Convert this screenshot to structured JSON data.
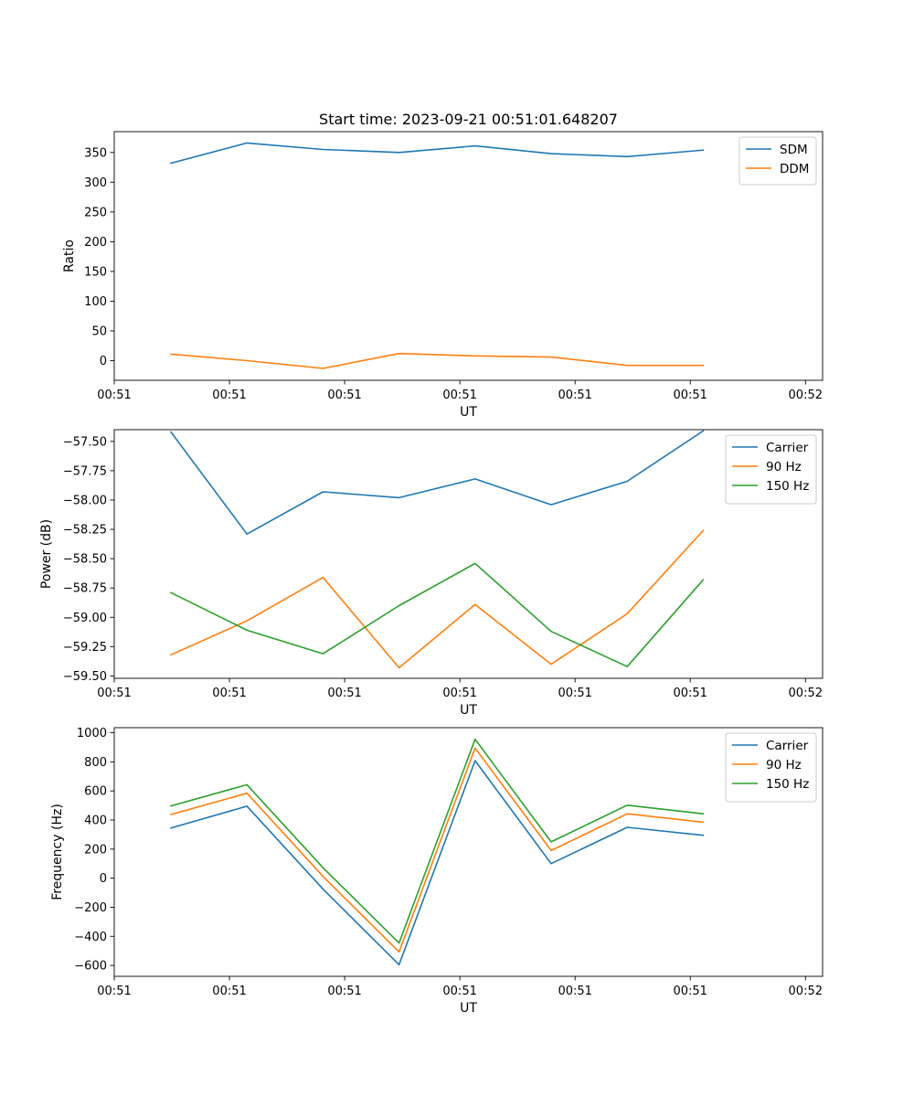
{
  "chart_data": [
    {
      "type": "line",
      "title": "Start time: 2023-09-21 00:51:01.648207",
      "xlabel": "UT",
      "ylabel": "Ratio",
      "x": [
        0,
        1,
        2,
        3,
        4,
        5,
        6,
        7
      ],
      "xlim": [
        -0.745,
        8.57
      ],
      "xticks": [
        {
          "x": -0.745,
          "label": "00:51"
        },
        {
          "x": 0.77,
          "label": "00:51"
        },
        {
          "x": 2.285,
          "label": "00:51"
        },
        {
          "x": 3.8,
          "label": "00:51"
        },
        {
          "x": 5.315,
          "label": "00:51"
        },
        {
          "x": 6.83,
          "label": "00:51"
        },
        {
          "x": 8.345,
          "label": "00:52"
        }
      ],
      "ylim": [
        -33,
        385
      ],
      "yticks": [
        {
          "y": 0,
          "label": "0"
        },
        {
          "y": 50,
          "label": "50"
        },
        {
          "y": 100,
          "label": "100"
        },
        {
          "y": 150,
          "label": "150"
        },
        {
          "y": 200,
          "label": "200"
        },
        {
          "y": 250,
          "label": "250"
        },
        {
          "y": 300,
          "label": "300"
        },
        {
          "y": 350,
          "label": "350"
        }
      ],
      "series": [
        {
          "name": "SDM",
          "color": "#1f77b4",
          "values": [
            332,
            366,
            355,
            350,
            361,
            348,
            343,
            354
          ]
        },
        {
          "name": "DDM",
          "color": "#ff7f0e",
          "values": [
            11,
            0,
            -13,
            12,
            8,
            6,
            -8,
            -8
          ]
        }
      ],
      "legend": "top-right"
    },
    {
      "type": "line",
      "title": "",
      "xlabel": "UT",
      "ylabel": "Power (dB)",
      "x": [
        0,
        1,
        2,
        3,
        4,
        5,
        6,
        7
      ],
      "xlim": [
        -0.745,
        8.57
      ],
      "xticks": [
        {
          "x": -0.745,
          "label": "00:51"
        },
        {
          "x": 0.77,
          "label": "00:51"
        },
        {
          "x": 2.285,
          "label": "00:51"
        },
        {
          "x": 3.8,
          "label": "00:51"
        },
        {
          "x": 5.315,
          "label": "00:51"
        },
        {
          "x": 6.83,
          "label": "00:51"
        },
        {
          "x": 8.345,
          "label": "00:52"
        }
      ],
      "ylim": [
        -59.52,
        -57.4
      ],
      "yticks": [
        {
          "y": -59.5,
          "label": "−59.50"
        },
        {
          "y": -59.25,
          "label": "−59.25"
        },
        {
          "y": -59.0,
          "label": "−59.00"
        },
        {
          "y": -58.75,
          "label": "−58.75"
        },
        {
          "y": -58.5,
          "label": "−58.50"
        },
        {
          "y": -58.25,
          "label": "−58.25"
        },
        {
          "y": -58.0,
          "label": "−58.00"
        },
        {
          "y": -57.75,
          "label": "−57.75"
        },
        {
          "y": -57.5,
          "label": "−57.50"
        }
      ],
      "series": [
        {
          "name": "Carrier",
          "color": "#1f77b4",
          "values": [
            -57.42,
            -58.29,
            -57.93,
            -57.98,
            -57.82,
            -58.04,
            -57.84,
            -57.41
          ]
        },
        {
          "name": "90 Hz",
          "color": "#ff7f0e",
          "values": [
            -59.32,
            -59.03,
            -58.66,
            -59.43,
            -58.89,
            -59.4,
            -58.97,
            -58.26
          ]
        },
        {
          "name": "150 Hz",
          "color": "#2ca02c",
          "values": [
            -58.79,
            -59.11,
            -59.31,
            -58.9,
            -58.54,
            -59.12,
            -59.42,
            -58.68
          ]
        }
      ],
      "legend": "top-right"
    },
    {
      "type": "line",
      "title": "",
      "xlabel": "UT",
      "ylabel": "Frequency (Hz)",
      "x": [
        0,
        1,
        2,
        3,
        4,
        5,
        6,
        7
      ],
      "xlim": [
        -0.745,
        8.57
      ],
      "xticks": [
        {
          "x": -0.745,
          "label": "00:51"
        },
        {
          "x": 0.77,
          "label": "00:51"
        },
        {
          "x": 2.285,
          "label": "00:51"
        },
        {
          "x": 3.8,
          "label": "00:51"
        },
        {
          "x": 5.315,
          "label": "00:51"
        },
        {
          "x": 6.83,
          "label": "00:51"
        },
        {
          "x": 8.345,
          "label": "00:52"
        }
      ],
      "ylim": [
        -675,
        1035
      ],
      "yticks": [
        {
          "y": -600,
          "label": "−600"
        },
        {
          "y": -400,
          "label": "−400"
        },
        {
          "y": -200,
          "label": "−200"
        },
        {
          "y": 0,
          "label": "0"
        },
        {
          "y": 200,
          "label": "200"
        },
        {
          "y": 400,
          "label": "400"
        },
        {
          "y": 600,
          "label": "600"
        },
        {
          "y": 800,
          "label": "800"
        },
        {
          "y": 1000,
          "label": "1000"
        }
      ],
      "series": [
        {
          "name": "Carrier",
          "color": "#1f77b4",
          "values": [
            345,
            495,
            -75,
            -595,
            808,
            100,
            350,
            295
          ]
        },
        {
          "name": "90 Hz",
          "color": "#ff7f0e",
          "values": [
            438,
            584,
            12,
            -507,
            895,
            190,
            443,
            385
          ]
        },
        {
          "name": "150 Hz",
          "color": "#2ca02c",
          "values": [
            497,
            643,
            72,
            -446,
            955,
            250,
            502,
            443
          ]
        }
      ],
      "legend": "top-right"
    }
  ]
}
